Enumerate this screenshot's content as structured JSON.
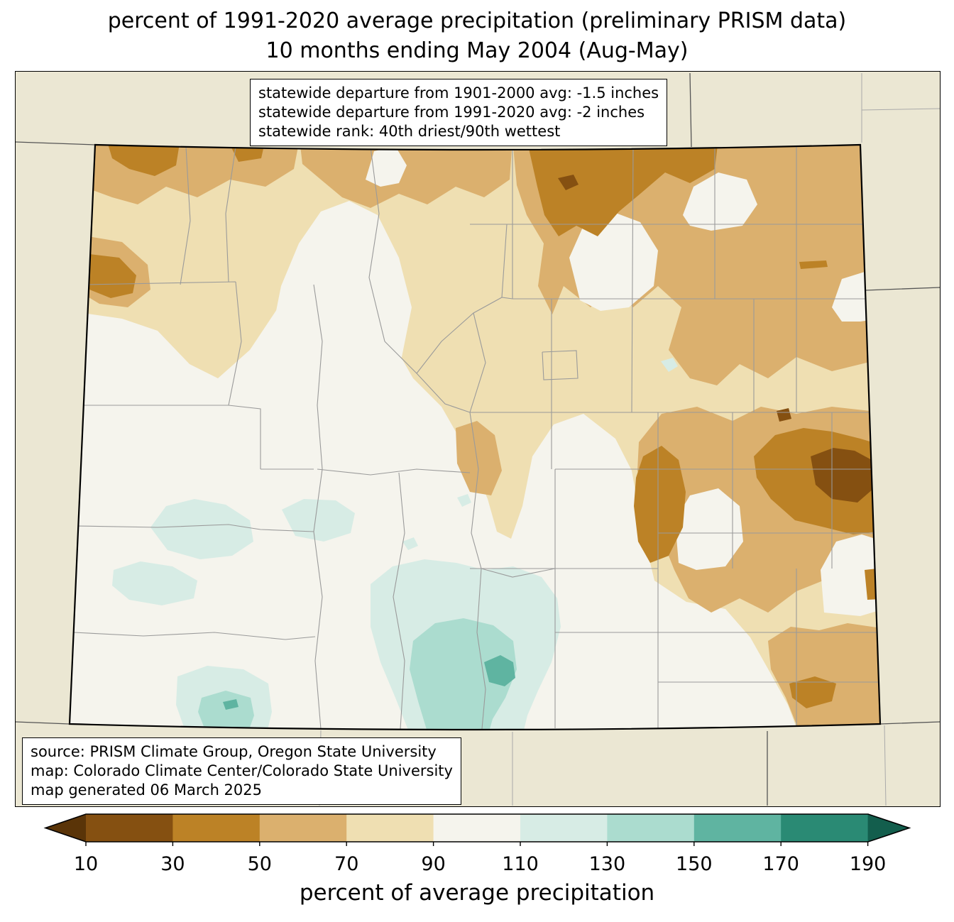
{
  "title": {
    "line1": "percent of 1991-2020 average precipitation (preliminary PRISM data)",
    "line2": "10 months ending May 2004 (Aug-May)"
  },
  "map": {
    "stats_box_lines": [
      "statewide departure from 1901-2000 avg: -1.5 inches",
      "statewide departure from 1991-2020 avg: -2 inches",
      "statewide rank: 40th driest/90th wettest"
    ],
    "source_box_lines": [
      "source: PRISM Climate Group, Oregon State University",
      "map: Colorado Climate Center/Colorado State University",
      "map generated 06 March 2025"
    ]
  },
  "colorbar": {
    "label": "percent of average precipitation",
    "ticks": [
      "10",
      "30",
      "50",
      "70",
      "90",
      "110",
      "130",
      "150",
      "170",
      "190"
    ],
    "under_arrow_color": "#5a3408",
    "over_arrow_color": "#135e4d",
    "segment_colors": [
      "#855011",
      "#bc8226",
      "#dbb06e",
      "#efdfb2",
      "#f5f4ed",
      "#d7ece5",
      "#abdccf",
      "#5fb4a1",
      "#2a8a74"
    ]
  },
  "palette": {
    "outside": "#ebe7d3",
    "state_border": "#000000",
    "county_line": "#9a9a9a",
    "neighbor_state_line": "#555555",
    "neighbor_county_line": "#aaaaaa",
    "b10_30": "#855011",
    "b30_50": "#bc8226",
    "b50_70": "#dbb06e",
    "b70_90": "#efdfb2",
    "b90_110": "#f5f4ed",
    "b110_130": "#d7ece5",
    "b130_150": "#abdccf",
    "b150_170": "#5fb4a1",
    "b170_190": "#2a8a74"
  }
}
